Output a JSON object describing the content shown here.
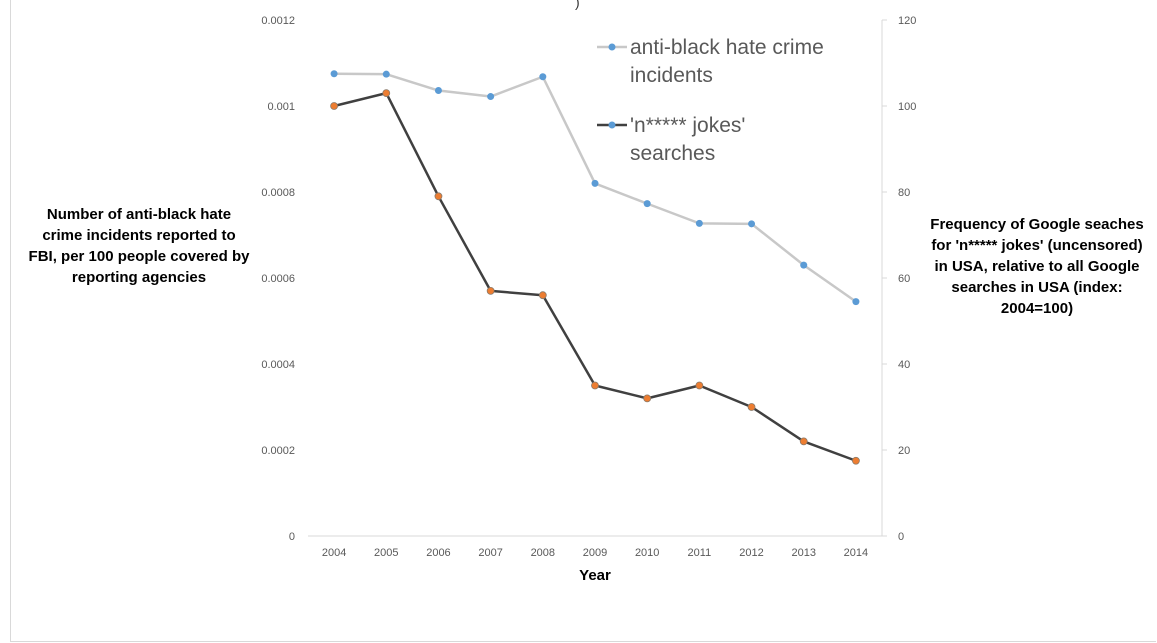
{
  "chart_data": {
    "type": "line",
    "top_fragment": ")",
    "xlabel": "Year",
    "ylabel_left": "Number of anti-black hate crime incidents reported to FBI, per 100 people covered by reporting agencies",
    "ylabel_right": "Frequency of Google seaches for 'n***** jokes' (uncensored) in USA, relative to all Google searches in USA (index: 2004=100)",
    "categories": [
      "2004",
      "2005",
      "2006",
      "2007",
      "2008",
      "2009",
      "2010",
      "2011",
      "2012",
      "2013",
      "2014"
    ],
    "y_left": {
      "ylim": [
        0,
        0.0012
      ],
      "ticks": [
        "0",
        "0.0002",
        "0.0004",
        "0.0006",
        "0.0008",
        "0.001",
        "0.0012"
      ],
      "tick_values": [
        0,
        0.0002,
        0.0004,
        0.0006,
        0.0008,
        0.001,
        0.0012
      ]
    },
    "y_right": {
      "ylim": [
        0,
        120
      ],
      "ticks": [
        "0",
        "20",
        "40",
        "60",
        "80",
        "100",
        "120"
      ],
      "tick_values": [
        0,
        20,
        40,
        60,
        80,
        100,
        120
      ]
    },
    "series": [
      {
        "name": "anti-black hate crime incidents",
        "axis": "left",
        "values": [
          0.001075,
          0.001074,
          0.001036,
          0.001022,
          0.001068,
          0.00082,
          0.000773,
          0.000727,
          0.000726,
          0.00063,
          0.000545
        ],
        "line_color": "#c8c8c8",
        "marker_color": "#5b9bd5"
      },
      {
        "name": "'n***** jokes' searches",
        "axis": "right",
        "values": [
          100,
          103,
          79,
          57,
          56,
          35,
          32,
          35,
          30,
          22,
          17.5
        ],
        "line_color": "#404040",
        "marker_color": "#ed7d31"
      }
    ],
    "legend_lines": [
      [
        "anti-black hate crime",
        "incidents"
      ],
      [
        "'n***** jokes'",
        "searches"
      ]
    ],
    "legend_position": "top-right",
    "grid": false
  }
}
